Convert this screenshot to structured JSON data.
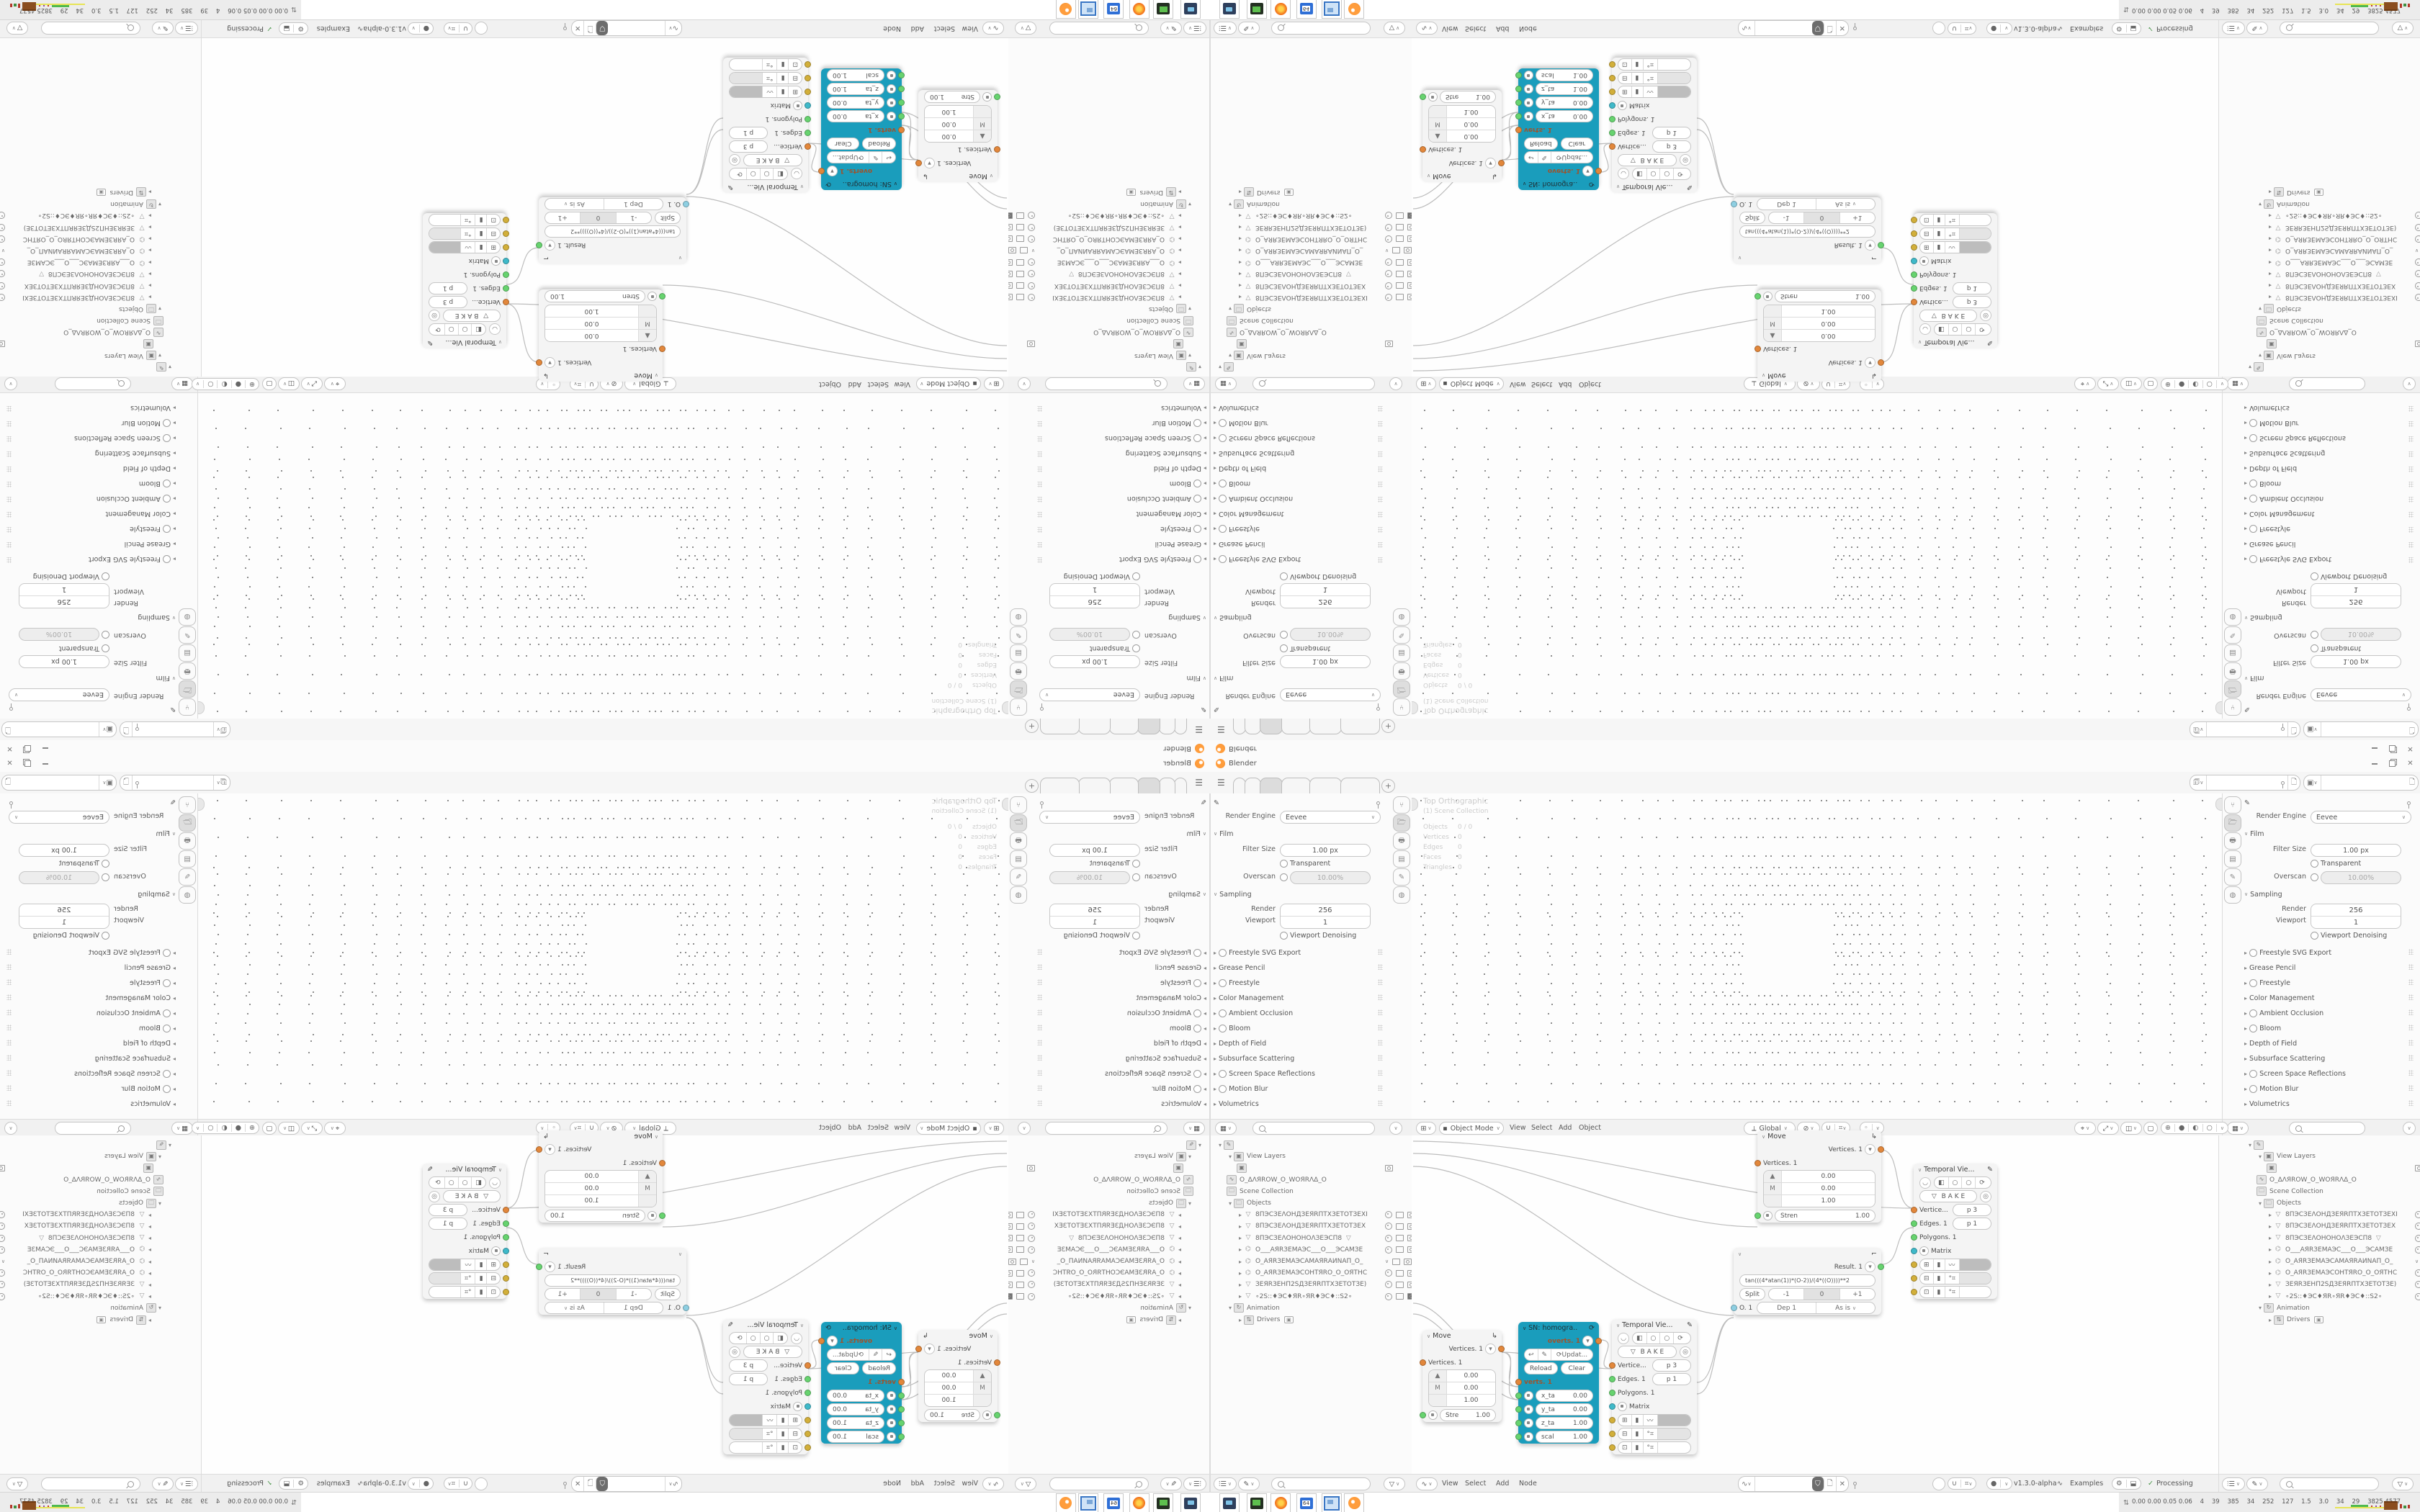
{
  "window": {
    "title": "Blender"
  },
  "props": {
    "render_engine_label": "Render Engine",
    "render_engine_value": "Eevee",
    "film_label": "Film",
    "filter_size_label": "Filter Size",
    "filter_size_value": "1.00 px",
    "transparent_label": "Transparent",
    "overscan_label": "Overscan",
    "overscan_value": "10.00%",
    "sampling_label": "Sampling",
    "render_label": "Render",
    "render_value": "256",
    "viewport_label": "Viewport",
    "viewport_value": "1",
    "viewport_denoising_label": "Viewport Denoising",
    "sections": [
      {
        "label": "Freestyle SVG Export",
        "toggle": true
      },
      {
        "label": "Grease Pencil",
        "toggle": false
      },
      {
        "label": "Freestyle",
        "toggle": true
      },
      {
        "label": "Color Management",
        "toggle": false
      },
      {
        "label": "Ambient Occlusion",
        "toggle": true
      },
      {
        "label": "Bloom",
        "toggle": true
      },
      {
        "label": "Depth of Field",
        "toggle": false
      },
      {
        "label": "Subsurface Scattering",
        "toggle": false
      },
      {
        "label": "Screen Space Reflections",
        "toggle": true
      },
      {
        "label": "Motion Blur",
        "toggle": true
      },
      {
        "label": "Volumetrics",
        "toggle": false
      }
    ]
  },
  "viewport": {
    "view_label": "Top Orthographic",
    "collection_label": "(1) Scene Collection",
    "stats": [
      {
        "k": "Objects",
        "v": "0 / 0"
      },
      {
        "k": "Vertices",
        "v": "0"
      },
      {
        "k": "Edges",
        "v": "0"
      },
      {
        "k": "Faces",
        "v": "0"
      },
      {
        "k": "Triangles",
        "v": "0"
      }
    ],
    "mode": "Object Mode",
    "menus": [
      "View",
      "Select",
      "Add",
      "Object"
    ],
    "orientation": "Global"
  },
  "outliner": {
    "rows": [
      {
        "kind": "root",
        "icon": "scene",
        "label": ""
      },
      {
        "kind": "branch",
        "depth": 1,
        "caret": "open",
        "icon": "viewlayer",
        "label": "View Layers"
      },
      {
        "kind": "badge",
        "depth": 2,
        "icon": "viewlayer",
        "label": "",
        "right": [
          "cam"
        ]
      },
      {
        "kind": "branch",
        "depth": 1,
        "caret": "",
        "icon": "script",
        "label": "O_ΔΛЯROW_O_WOЯRΛΔ_O"
      },
      {
        "kind": "branch",
        "depth": 1,
        "caret": "",
        "icon": "collection",
        "label": "Scene Collection"
      },
      {
        "kind": "branch",
        "depth": 1,
        "caret": "open",
        "icon": "collection",
        "label": "Objects"
      },
      {
        "kind": "obj",
        "icon": "mesh",
        "label": "8ПЭСЗЕΛОНДЗЕЯRПТХЗЕТОТЗЕХI",
        "right": [
          "eye",
          "mon",
          "cam"
        ]
      },
      {
        "kind": "obj",
        "icon": "mesh",
        "label": "8ПЭСЗЕΛОНДЗЕЯRПТХЗЕТОТЗЕХ",
        "right": [
          "eye",
          "mon",
          "cam"
        ]
      },
      {
        "kind": "obj",
        "icon": "mesh",
        "label": "8ПЭСЗЕΛОНОНОΛЗЕЭСП8",
        "extra": "mesh",
        "right": [
          "eye",
          "mon",
          "cam"
        ]
      },
      {
        "kind": "obj",
        "icon": "camera",
        "label": "O___АЯRЗЕМАЭС___О___ЭСАМЗЕ",
        "right": [
          "eye",
          "mon",
          "cam"
        ]
      },
      {
        "kind": "obj",
        "icon": "camera",
        "label": "O_АЯRЗЕМАЭСАМАЯRАИNАП_О_",
        "right": [
          "chev",
          "mon",
          "cam"
        ]
      },
      {
        "kind": "obj",
        "icon": "camera",
        "label": "O_АЯRЗЕМАЭСОНТЯRО_О_ОЯТНС",
        "right": [
          "eye",
          "mon",
          "cam"
        ]
      },
      {
        "kind": "obj",
        "icon": "mesh",
        "label": "ЗЕЯRЗЕНП2SДЗЕЯRПТХЗЕТОТЗЕ)",
        "right": [
          "eye",
          "mon",
          "cam"
        ]
      },
      {
        "kind": "obj",
        "icon": "mesh",
        "label": "∘2S::♦ЭС♦ЯR∘ЯR♦ЭС♦::S2∘",
        "right": [
          "eye",
          "mon",
          "camsolid"
        ]
      },
      {
        "kind": "branch",
        "depth": 1,
        "caret": "open",
        "icon": "anim",
        "label": "Animation"
      },
      {
        "kind": "branch",
        "depth": 2,
        "caret": "closed",
        "icon": "drivers",
        "label": "Drivers",
        "badge": true
      }
    ]
  },
  "node_editor": {
    "menus": [
      "View",
      "Select",
      "Add",
      "Node"
    ],
    "version": "v1.3.0-alpha",
    "examples_label": "Examples",
    "processing_label": "Processing"
  },
  "nodes": {
    "move_a": {
      "title": "Move",
      "out": "Vertices. 1",
      "in": "Vertices. 1",
      "r1k": "▲",
      "r1v": "0.00",
      "r2k": "M",
      "r2v": "0.00",
      "r3v": "1.00",
      "bk": "Stren",
      "bv": "1.00"
    },
    "move_b": {
      "title": "Move",
      "out": "Vertices. 1",
      "in": "Vertices. 1",
      "r1k": "▲",
      "r1v": "0.00",
      "r2k": "M",
      "r2v": "0.00",
      "r3v": "1.00",
      "bk": "Stre",
      "bv": "1.00"
    },
    "sn": {
      "title": "SN: homogra..",
      "out": "overts. 1",
      "update": "Updat...",
      "reload": "Reload",
      "clear": "Clear",
      "in": "verts. 1",
      "fields": [
        {
          "k": "x_ta",
          "v": "0.00"
        },
        {
          "k": "y_ta",
          "v": "0.00"
        },
        {
          "k": "z_ta",
          "v": "1.00"
        },
        {
          "k": "scal",
          "v": "1.00"
        }
      ]
    },
    "temporal": {
      "title": "Temporal Vie...",
      "bake": "B A K E",
      "r1k": "Vertice...",
      "r1v": "p 3",
      "r2k": "Edges. 1",
      "r2v": "p 1",
      "r3k": "Polygons. 1",
      "matrix": "Matrix"
    },
    "formula": {
      "out": "Result. 1",
      "expr": "tan(((4*atan(1))*(O-2))/(4*((O))))**2",
      "split": "Split",
      "m1": "-1",
      "z": "0",
      "p1": "+1",
      "o": "O. 1",
      "dep": "Dep 1",
      "asis": "As is"
    }
  },
  "taskbar": {
    "apps": [
      "screenshot-tool",
      "package-tool",
      "firefox",
      "floppy-64",
      "image-viewer",
      "blender"
    ],
    "stats": "0.00 0.00 0.05 0.06    4    39    385    34    252    127    1.5    3.0    34    29    3825 4577"
  },
  "colors": {
    "accent_teal": "#1a9dbc",
    "socket_orange": "#e2873b",
    "socket_green": "#67d36f",
    "socket_cyan": "#3fb9c9",
    "socket_yellow": "#d2af3a",
    "blender_orange": "#e87d1e"
  }
}
